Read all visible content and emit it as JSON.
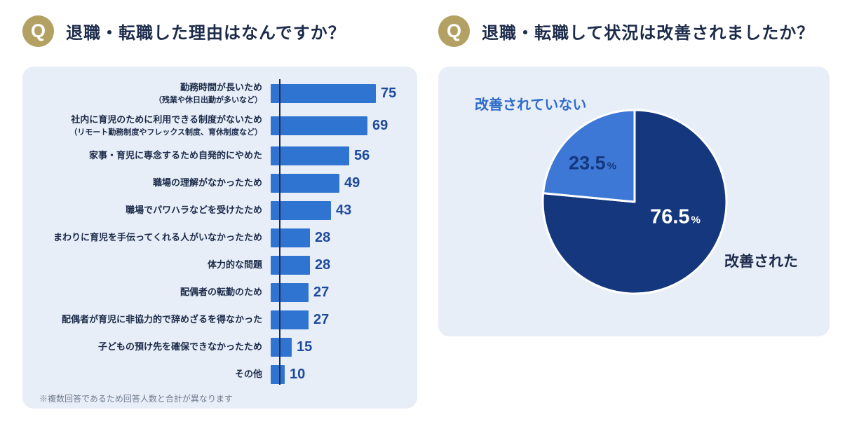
{
  "colors": {
    "panel_bg": "#e8eef8",
    "bar": "#2f74d0",
    "bar_value": "#1e4a9c",
    "title": "#1c2b4a",
    "q_badge": "#b3a164",
    "pie_dark": "#14377d",
    "pie_light": "#3d78d6",
    "footnote": "#6f7b8c"
  },
  "left_section": {
    "q": "Q",
    "title": "退職・転職した理由はなんですか？",
    "footnote": "※複数回答であるため回答人数と合計が異なります"
  },
  "right_section": {
    "q": "Q",
    "title": "退職・転職して状況は改善されましたか？",
    "pie_labels": {
      "not_improved": "改善されていない",
      "improved": "改善された",
      "not_improved_pct": "23.5",
      "improved_pct": "76.5",
      "pct_suffix": "%"
    }
  },
  "chart_data": [
    {
      "type": "bar",
      "orientation": "horizontal",
      "title": "退職・転職した理由はなんですか？",
      "categories": [
        {
          "label": "勤務時間が長いため",
          "sub": "（残業や休日出勤が多いなど）"
        },
        {
          "label": "社内に育児のために利用できる制度がないため",
          "sub": "（リモート勤務制度やフレックス制度、育休制度など）"
        },
        {
          "label": "家事・育児に専念するため自発的にやめた"
        },
        {
          "label": "職場の理解がなかったため"
        },
        {
          "label": "職場でパワハラなどを受けたため"
        },
        {
          "label": "まわりに育児を手伝ってくれる人がいなかったため"
        },
        {
          "label": "体力的な問題"
        },
        {
          "label": "配偶者の転勤のため"
        },
        {
          "label": "配偶者が育児に非協力的で辞めざるを得なかった"
        },
        {
          "label": "子どもの預け先を確保できなかったため"
        },
        {
          "label": "その他"
        }
      ],
      "values": [
        75,
        69,
        56,
        49,
        43,
        28,
        28,
        27,
        27,
        15,
        10
      ],
      "xlim": [
        0,
        80
      ],
      "bar_color": "#2f74d0",
      "note": "※複数回答であるため回答人数と合計が異なります",
      "legend": "none",
      "grid": false
    },
    {
      "type": "pie",
      "title": "退職・転職して状況は改善されましたか？",
      "slices": [
        {
          "label": "改善された",
          "value": 76.5,
          "color": "#14377d"
        },
        {
          "label": "改善されていない",
          "value": 23.5,
          "color": "#3d78d6"
        }
      ],
      "start_angle_deg": -90,
      "direction": "clockwise",
      "legend": "none"
    }
  ]
}
